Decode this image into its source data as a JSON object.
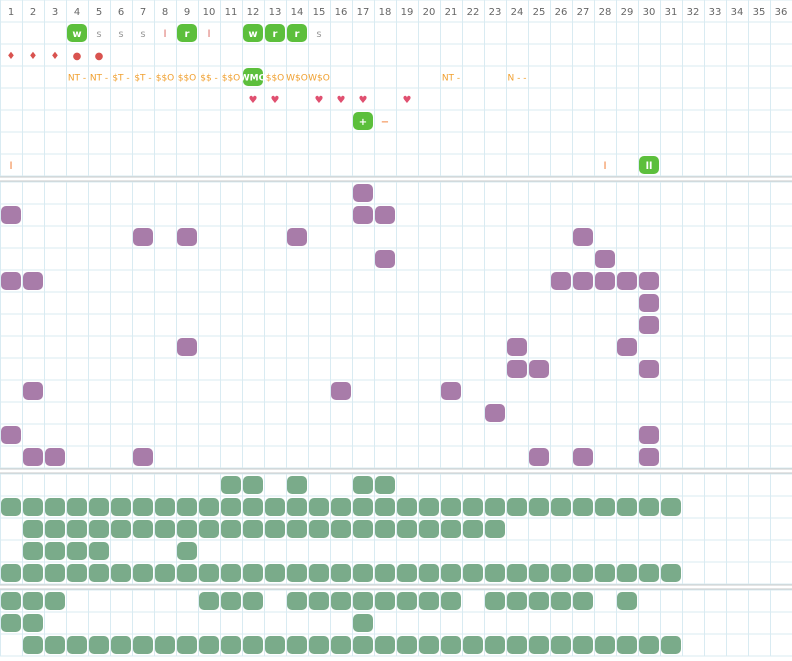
{
  "header": {
    "columns": [
      1,
      2,
      3,
      4,
      5,
      6,
      7,
      8,
      9,
      10,
      11,
      12,
      13,
      14,
      15,
      16,
      17,
      18,
      19,
      20,
      21,
      22,
      23,
      24,
      25,
      26,
      27,
      28,
      29,
      30,
      31,
      32,
      33,
      34,
      35,
      36
    ]
  },
  "status_rows": [
    [
      {
        "col": 4,
        "text": "w",
        "color": "#ffffff",
        "bg": "#5cbf3c"
      },
      {
        "col": 5,
        "text": "s",
        "color": "#9a9a9a"
      },
      {
        "col": 6,
        "text": "s",
        "color": "#9a9a9a"
      },
      {
        "col": 7,
        "text": "s",
        "color": "#9a9a9a"
      },
      {
        "col": 8,
        "text": "l",
        "color": "#d9605a"
      },
      {
        "col": 9,
        "text": "r",
        "color": "#ffffff",
        "bg": "#5cbf3c"
      },
      {
        "col": 10,
        "text": "l",
        "color": "#d9605a"
      },
      {
        "col": 12,
        "text": "w",
        "color": "#ffffff",
        "bg": "#5cbf3c"
      },
      {
        "col": 13,
        "text": "r",
        "color": "#ffffff",
        "bg": "#5cbf3c"
      },
      {
        "col": 14,
        "text": "r",
        "color": "#ffffff",
        "bg": "#5cbf3c"
      },
      {
        "col": 15,
        "text": "s",
        "color": "#9a9a9a"
      }
    ],
    [
      {
        "col": 1,
        "text": "♦",
        "color": "#d9534f"
      },
      {
        "col": 2,
        "text": "♦",
        "color": "#d9534f"
      },
      {
        "col": 3,
        "text": "♦",
        "color": "#d9534f"
      },
      {
        "col": 4,
        "text": "●",
        "color": "#d9534f"
      },
      {
        "col": 5,
        "text": "●",
        "color": "#d9534f"
      }
    ],
    [
      {
        "col": 4,
        "text": "NT -",
        "color": "#f0a030"
      },
      {
        "col": 5,
        "text": "NT -",
        "color": "#f0a030"
      },
      {
        "col": 6,
        "text": "$T -",
        "color": "#f0a030"
      },
      {
        "col": 7,
        "text": "$T -",
        "color": "#f0a030"
      },
      {
        "col": 8,
        "text": "$$O",
        "color": "#f0a030"
      },
      {
        "col": 9,
        "text": "$$O",
        "color": "#f0a030"
      },
      {
        "col": 10,
        "text": "$$ -",
        "color": "#f0a030"
      },
      {
        "col": 11,
        "text": "$$O",
        "color": "#f0a030"
      },
      {
        "col": 12,
        "text": "WMO",
        "color": "#ffffff",
        "bg": "#5cbf3c"
      },
      {
        "col": 13,
        "text": "$$O",
        "color": "#f0a030"
      },
      {
        "col": 14,
        "text": "W$O",
        "color": "#f0a030"
      },
      {
        "col": 15,
        "text": "W$O",
        "color": "#f0a030"
      },
      {
        "col": 21,
        "text": "NT -",
        "color": "#f0a030"
      },
      {
        "col": 24,
        "text": "N - -",
        "color": "#f0a030"
      }
    ],
    [
      {
        "col": 12,
        "text": "♥",
        "color": "#e05070"
      },
      {
        "col": 13,
        "text": "♥",
        "color": "#e05070"
      },
      {
        "col": 15,
        "text": "♥",
        "color": "#e05070"
      },
      {
        "col": 16,
        "text": "♥",
        "color": "#e05070"
      },
      {
        "col": 17,
        "text": "♥",
        "color": "#e05070"
      },
      {
        "col": 19,
        "text": "♥",
        "color": "#e05070"
      }
    ],
    [
      {
        "col": 17,
        "text": "+",
        "color": "#ffffff",
        "bg": "#5cbf3c"
      },
      {
        "col": 18,
        "text": "−",
        "color": "#f07020"
      }
    ],
    [],
    [
      {
        "col": 1,
        "text": "l",
        "color": "#f07020"
      },
      {
        "col": 28,
        "text": "l",
        "color": "#f07020"
      },
      {
        "col": 30,
        "text": "ll",
        "color": "#ffffff",
        "bg": "#5cbf3c"
      }
    ]
  ],
  "sections": [
    {
      "color": "#a87ca9",
      "rows": [
        [
          17
        ],
        [
          1,
          17,
          18
        ],
        [
          7,
          9,
          14,
          27
        ],
        [
          18,
          28
        ],
        [
          1,
          2,
          26,
          27,
          28,
          29,
          30
        ],
        [
          30
        ],
        [
          30
        ],
        [
          9,
          24,
          29
        ],
        [
          24,
          25,
          30
        ],
        [
          2,
          16,
          21
        ],
        [
          23
        ],
        [
          1,
          30
        ],
        [
          2,
          3,
          7,
          25,
          27,
          30
        ]
      ]
    },
    {
      "color": "#7aab8a",
      "rows": [
        [
          11,
          12,
          14,
          17,
          18
        ],
        [
          1,
          2,
          3,
          4,
          5,
          6,
          7,
          8,
          9,
          10,
          11,
          12,
          13,
          14,
          15,
          16,
          17,
          18,
          19,
          20,
          21,
          22,
          23,
          24,
          25,
          26,
          27,
          28,
          29,
          30,
          31
        ],
        [
          2,
          3,
          4,
          5,
          6,
          7,
          8,
          9,
          10,
          11,
          12,
          13,
          14,
          15,
          16,
          17,
          18,
          19,
          20,
          21,
          22,
          23
        ],
        [
          2,
          3,
          4,
          5,
          9
        ],
        [
          1,
          2,
          3,
          4,
          5,
          6,
          7,
          8,
          9,
          10,
          11,
          12,
          13,
          14,
          15,
          16,
          17,
          18,
          19,
          20,
          21,
          22,
          23,
          24,
          25,
          26,
          27,
          28,
          29,
          30,
          31
        ]
      ]
    },
    {
      "color": "#7aab8a",
      "rows": [
        [
          1,
          2,
          3,
          10,
          11,
          12,
          14,
          15,
          16,
          17,
          18,
          19,
          20,
          21,
          23,
          24,
          25,
          26,
          27,
          29
        ],
        [
          1,
          2,
          17
        ],
        [
          2,
          3,
          4,
          5,
          6,
          7,
          8,
          9,
          10,
          11,
          12,
          13,
          14,
          15,
          16,
          17,
          18,
          19,
          20,
          21,
          22,
          23,
          24,
          25,
          26,
          27,
          28,
          29,
          30,
          31
        ]
      ]
    }
  ]
}
